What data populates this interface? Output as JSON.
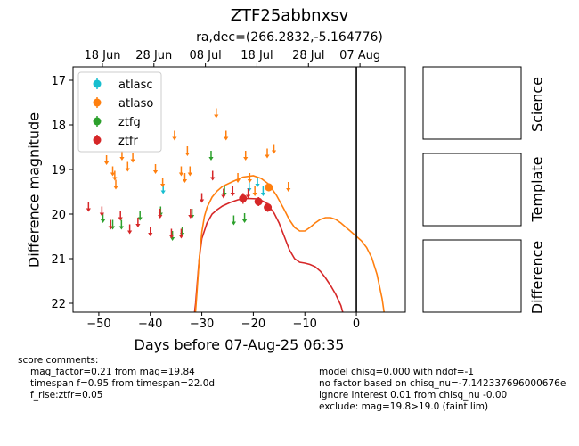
{
  "title": "ZTF25abbnxsv",
  "subtitle": "ra,dec=(266.2832,-5.164776)",
  "chart_data": {
    "type": "scatter",
    "xlabel": "Days before 07-Aug-25 06:35",
    "ylabel": "Difference magnitude",
    "xlim": [
      -55,
      9.5
    ],
    "ylim": [
      22.2,
      16.7
    ],
    "xticks": [
      -50,
      -40,
      -30,
      -20,
      -10,
      0
    ],
    "yticks": [
      17,
      18,
      19,
      20,
      21,
      22
    ],
    "top_ticks": [
      {
        "x": -49.3,
        "label": "18 Jun"
      },
      {
        "x": -39.3,
        "label": "28 Jun"
      },
      {
        "x": -29.3,
        "label": "08 Jul"
      },
      {
        "x": -19.3,
        "label": "18 Jul"
      },
      {
        "x": -9.3,
        "label": "28 Jul"
      },
      {
        "x": 0.7,
        "label": "07 Aug"
      }
    ],
    "vline_x": 0,
    "legend_position": "upper-left",
    "series": [
      {
        "name": "atlasc",
        "color": "#17becf",
        "upper_limits": [
          [
            -37.5,
            19.45
          ],
          [
            -20.8,
            19.4
          ],
          [
            -19.2,
            19.3
          ],
          [
            -18.1,
            19.5
          ]
        ],
        "detections": []
      },
      {
        "name": "atlaso",
        "color": "#ff7f0e",
        "upper_limits": [
          [
            -48.5,
            18.8
          ],
          [
            -47.3,
            19.05
          ],
          [
            -46.9,
            19.15
          ],
          [
            -46.7,
            19.35
          ],
          [
            -45.5,
            18.7
          ],
          [
            -44.4,
            18.95
          ],
          [
            -43.4,
            18.75
          ],
          [
            -39.0,
            19.0
          ],
          [
            -37.6,
            19.3
          ],
          [
            -35.3,
            18.25
          ],
          [
            -34.0,
            19.05
          ],
          [
            -33.3,
            19.2
          ],
          [
            -32.8,
            18.6
          ],
          [
            -32.3,
            19.05
          ],
          [
            -27.2,
            17.75
          ],
          [
            -25.3,
            18.25
          ],
          [
            -23.0,
            19.2
          ],
          [
            -21.5,
            18.7
          ],
          [
            -20.7,
            19.2
          ],
          [
            -19.7,
            19.5
          ],
          [
            -17.3,
            18.65
          ],
          [
            -16.0,
            18.55
          ],
          [
            -13.2,
            19.4
          ]
        ],
        "detections": [
          [
            -17.0,
            19.4,
            0.09
          ]
        ]
      },
      {
        "name": "ztfg",
        "color": "#2ca02c",
        "upper_limits": [
          [
            -49.2,
            20.1
          ],
          [
            -47.3,
            20.25
          ],
          [
            -45.6,
            20.25
          ],
          [
            -42.0,
            20.05
          ],
          [
            -38.0,
            19.95
          ],
          [
            -35.7,
            20.5
          ],
          [
            -33.8,
            20.4
          ],
          [
            -31.9,
            20.0
          ],
          [
            -28.2,
            18.7
          ],
          [
            -25.6,
            19.5
          ],
          [
            -23.8,
            20.15
          ],
          [
            -21.7,
            20.1
          ]
        ],
        "detections": []
      },
      {
        "name": "ztfr",
        "color": "#d62728",
        "upper_limits": [
          [
            -52.0,
            19.85
          ],
          [
            -49.4,
            19.95
          ],
          [
            -47.7,
            20.25
          ],
          [
            -45.8,
            20.05
          ],
          [
            -44.0,
            20.35
          ],
          [
            -42.4,
            20.2
          ],
          [
            -40.0,
            20.4
          ],
          [
            -38.1,
            20.0
          ],
          [
            -35.9,
            20.45
          ],
          [
            -34.0,
            20.45
          ],
          [
            -32.2,
            20.0
          ],
          [
            -30.0,
            19.65
          ],
          [
            -27.9,
            19.15
          ],
          [
            -25.8,
            19.55
          ],
          [
            -24.0,
            19.5
          ],
          [
            -21.0,
            19.55
          ]
        ],
        "detections": [
          [
            -22.0,
            19.65,
            0.12
          ],
          [
            -19.0,
            19.72,
            0.1
          ],
          [
            -17.2,
            19.85,
            0.1
          ]
        ]
      }
    ],
    "curves": [
      {
        "name": "ztfr-model",
        "color": "#d62728",
        "points": [
          [
            -31.5,
            22.3
          ],
          [
            -31.2,
            22.0
          ],
          [
            -30.9,
            21.55
          ],
          [
            -30.5,
            21.0
          ],
          [
            -30.0,
            20.55
          ],
          [
            -29.0,
            20.2
          ],
          [
            -28.0,
            20.0
          ],
          [
            -27.0,
            19.9
          ],
          [
            -26.0,
            19.82
          ],
          [
            -24.5,
            19.74
          ],
          [
            -23.0,
            19.68
          ],
          [
            -21.0,
            19.65
          ],
          [
            -19.0,
            19.66
          ],
          [
            -17.5,
            19.75
          ],
          [
            -16.0,
            19.97
          ],
          [
            -15.0,
            20.2
          ],
          [
            -14.0,
            20.5
          ],
          [
            -13.0,
            20.8
          ],
          [
            -12.0,
            21.0
          ],
          [
            -11.0,
            21.08
          ],
          [
            -10.0,
            21.1
          ],
          [
            -9.0,
            21.13
          ],
          [
            -8.0,
            21.18
          ],
          [
            -7.0,
            21.28
          ],
          [
            -6.0,
            21.43
          ],
          [
            -5.0,
            21.6
          ],
          [
            -4.0,
            21.8
          ],
          [
            -3.0,
            22.05
          ],
          [
            -2.4,
            22.3
          ]
        ]
      },
      {
        "name": "ztfo-model",
        "color": "#ff7f0e",
        "points": [
          [
            -31.3,
            22.3
          ],
          [
            -31.0,
            21.85
          ],
          [
            -30.5,
            21.0
          ],
          [
            -30.0,
            20.4
          ],
          [
            -29.5,
            20.05
          ],
          [
            -29.0,
            19.85
          ],
          [
            -28.0,
            19.62
          ],
          [
            -27.0,
            19.48
          ],
          [
            -26.0,
            19.38
          ],
          [
            -24.0,
            19.27
          ],
          [
            -22.0,
            19.17
          ],
          [
            -20.0,
            19.14
          ],
          [
            -18.5,
            19.2
          ],
          [
            -17.0,
            19.33
          ],
          [
            -15.5,
            19.58
          ],
          [
            -14.0,
            19.9
          ],
          [
            -13.0,
            20.13
          ],
          [
            -12.0,
            20.3
          ],
          [
            -11.0,
            20.38
          ],
          [
            -10.0,
            20.38
          ],
          [
            -9.0,
            20.3
          ],
          [
            -8.0,
            20.2
          ],
          [
            -7.0,
            20.12
          ],
          [
            -6.0,
            20.08
          ],
          [
            -5.0,
            20.08
          ],
          [
            -4.0,
            20.12
          ],
          [
            -3.0,
            20.2
          ],
          [
            -2.0,
            20.3
          ],
          [
            -1.0,
            20.4
          ],
          [
            0.0,
            20.5
          ],
          [
            1.0,
            20.6
          ],
          [
            2.0,
            20.75
          ],
          [
            3.0,
            20.98
          ],
          [
            4.0,
            21.35
          ],
          [
            5.0,
            21.9
          ],
          [
            5.5,
            22.3
          ]
        ]
      }
    ]
  },
  "panels": {
    "science_label": "Science",
    "template_label": "Template",
    "difference_label": "Difference"
  },
  "score_comments": {
    "heading": "score comments:",
    "lines": [
      "mag_factor=0.21 from mag=19.84",
      "timespan f=0.95 from timespan=22.0d",
      "f_rise:ztfr=0.05"
    ]
  },
  "model_comments": {
    "lines": [
      "model chisq=0.000 with ndof=-1",
      "no factor based on chisq_nu=-7.142337696000676e",
      "ignore interest 0.01 from chisq_nu -0.00",
      "exclude: mag=19.8>19.0 (faint lim)"
    ]
  }
}
